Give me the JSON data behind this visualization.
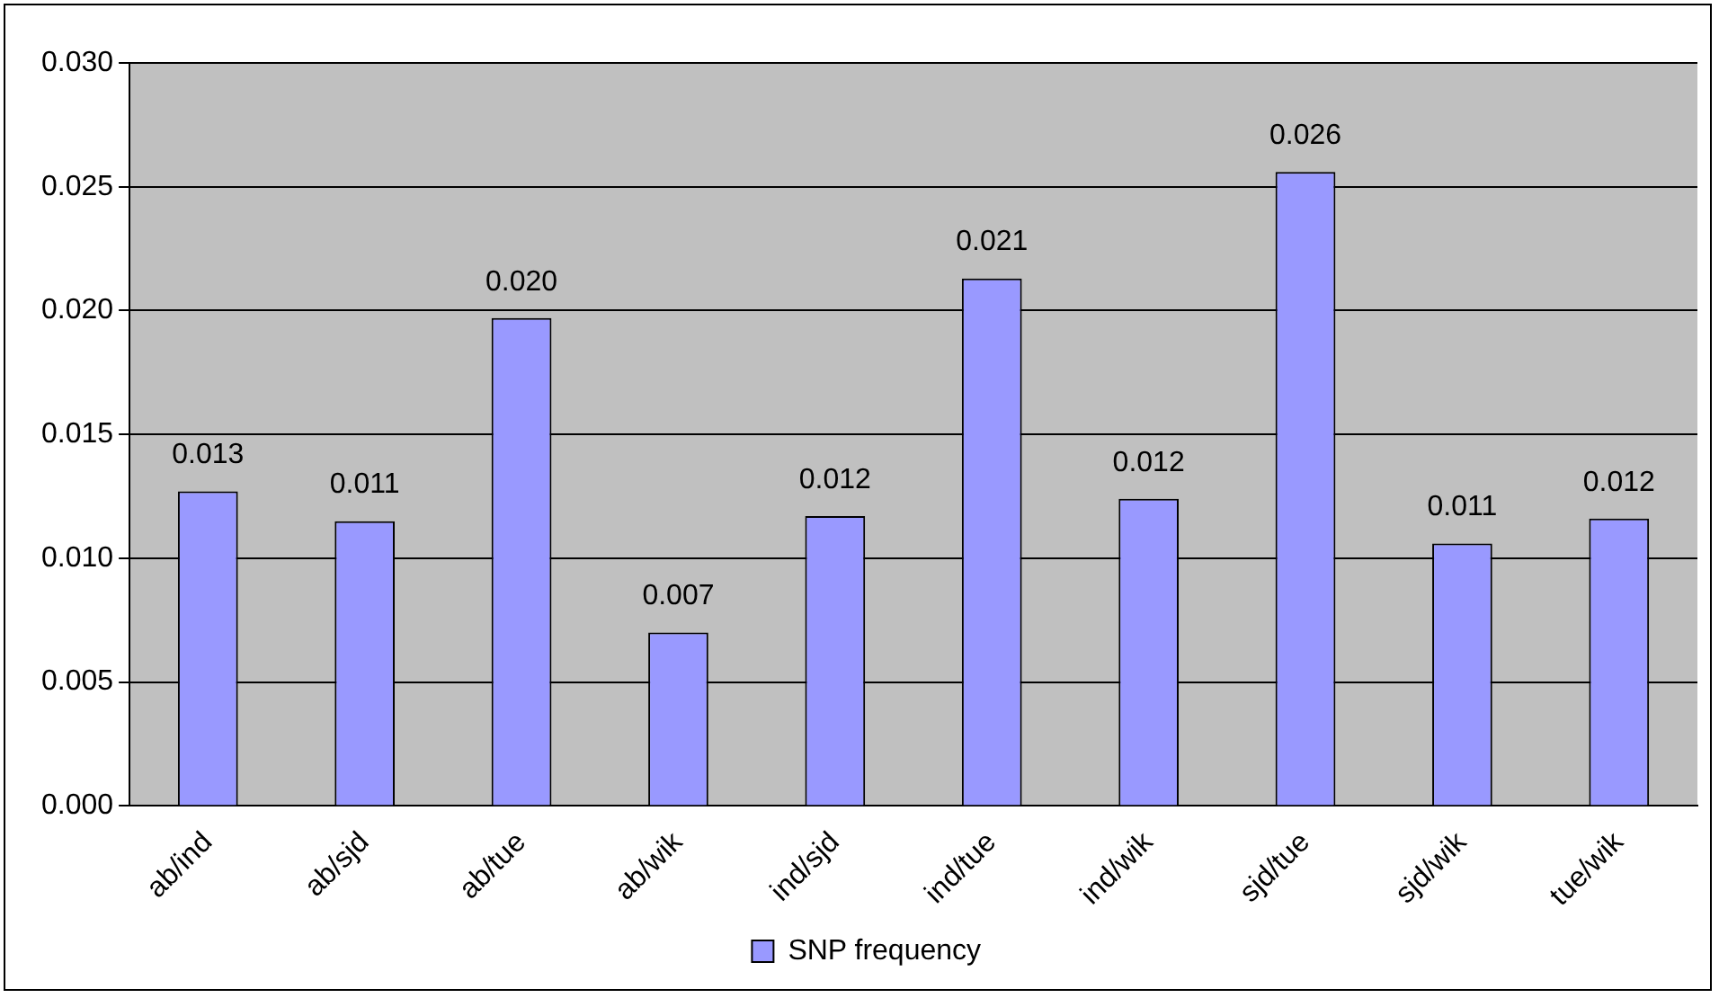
{
  "chart_data": {
    "type": "bar",
    "categories": [
      "ab/ind",
      "ab/sjd",
      "ab/tue",
      "ab/wik",
      "ind/sjd",
      "ind/tue",
      "ind/wik",
      "sjd/tue",
      "sjd/wik",
      "tue/wik"
    ],
    "series": [
      {
        "name": "SNP frequency",
        "color": "#9999ff",
        "values": [
          0.0127,
          0.0115,
          0.0197,
          0.007,
          0.0117,
          0.0213,
          0.0124,
          0.0256,
          0.0106,
          0.0116
        ],
        "value_labels": [
          "0.013",
          "0.011",
          "0.020",
          "0.007",
          "0.012",
          "0.021",
          "0.012",
          "0.026",
          "0.011",
          "0.012"
        ]
      }
    ],
    "ylim": [
      0,
      0.03
    ],
    "yticks": [
      {
        "value": 0,
        "label": "0.000"
      },
      {
        "value": 0.005,
        "label": "0.005"
      },
      {
        "value": 0.01,
        "label": "0.010"
      },
      {
        "value": 0.015,
        "label": "0.015"
      },
      {
        "value": 0.02,
        "label": "0.020"
      },
      {
        "value": 0.025,
        "label": "0.025"
      },
      {
        "value": 0.03,
        "label": "0.030"
      }
    ],
    "grid": "y",
    "legend": "bottom"
  }
}
